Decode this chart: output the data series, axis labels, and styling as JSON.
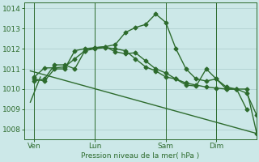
{
  "background_color": "#cce8e8",
  "grid_color": "#aacccc",
  "line_color": "#2d6b2d",
  "xlabel": "Pression niveau de la mer( hPa )",
  "ylim": [
    1007.5,
    1014.3
  ],
  "yticks": [
    1008,
    1009,
    1010,
    1011,
    1012,
    1013,
    1014
  ],
  "day_labels": [
    "Ven",
    "Lun",
    "Sam",
    "Dim"
  ],
  "day_positions": [
    0.5,
    3.5,
    7.0,
    9.5
  ],
  "vline_positions": [
    0.5,
    3.5,
    7.0,
    9.5
  ],
  "xlim": [
    0,
    11.5
  ],
  "series": [
    {
      "x": [
        0.5,
        1.0,
        1.5,
        2.0,
        2.5,
        3.0,
        3.5,
        4.0,
        4.5,
        5.0,
        5.5,
        6.0,
        6.5,
        7.0,
        7.5,
        8.0,
        8.5,
        9.0,
        9.5,
        10.0,
        10.5,
        11.0,
        11.5
      ],
      "y": [
        1010.6,
        1011.05,
        1011.05,
        1011.1,
        1011.5,
        1011.9,
        1012.0,
        1012.05,
        1012.0,
        1011.9,
        1011.5,
        1011.1,
        1010.9,
        1010.6,
        1010.5,
        1010.3,
        1010.2,
        1010.1,
        1010.05,
        1010.0,
        1010.0,
        1010.0,
        1007.8
      ],
      "marker": "D",
      "markersize": 2.5,
      "linewidth": 1.0
    },
    {
      "x": [
        0.5,
        1.0,
        1.5,
        2.0,
        2.5,
        3.0,
        3.5,
        4.0,
        4.5,
        5.0,
        5.5,
        6.0,
        6.5,
        7.0,
        7.5,
        8.0,
        8.5,
        9.0,
        9.5,
        10.0,
        10.5,
        11.0
      ],
      "y": [
        1010.5,
        1010.4,
        1011.0,
        1011.0,
        1011.9,
        1012.0,
        1012.05,
        1012.1,
        1012.2,
        1012.8,
        1013.05,
        1013.2,
        1013.72,
        1013.3,
        1012.0,
        1011.0,
        1010.5,
        1010.4,
        1010.5,
        1010.0,
        1010.0,
        1009.0
      ],
      "marker": "D",
      "markersize": 2.5,
      "linewidth": 1.0
    },
    {
      "x": [
        0.5,
        1.0,
        1.5,
        2.0,
        2.5,
        3.0,
        3.5,
        4.0,
        4.5,
        5.0,
        5.5,
        6.0,
        6.5,
        7.0,
        7.5,
        8.0,
        8.5,
        9.0,
        9.5,
        10.0,
        10.5,
        11.0,
        11.5
      ],
      "y": [
        1010.4,
        1010.5,
        1011.2,
        1011.2,
        1011.0,
        1011.9,
        1012.05,
        1012.1,
        1011.85,
        1011.75,
        1011.8,
        1011.4,
        1011.0,
        1010.8,
        1010.5,
        1010.2,
        1010.15,
        1011.0,
        1010.5,
        1010.1,
        1010.0,
        1009.8,
        1008.7
      ],
      "marker": "D",
      "markersize": 2.5,
      "linewidth": 1.0
    },
    {
      "x": [
        0.3,
        11.5
      ],
      "y": [
        1010.9,
        1007.8
      ],
      "marker": null,
      "markersize": 0,
      "linewidth": 1.0
    },
    {
      "x": [
        0.3,
        0.8
      ],
      "y": [
        1009.35,
        1010.6
      ],
      "marker": null,
      "markersize": 0,
      "linewidth": 1.0
    }
  ]
}
